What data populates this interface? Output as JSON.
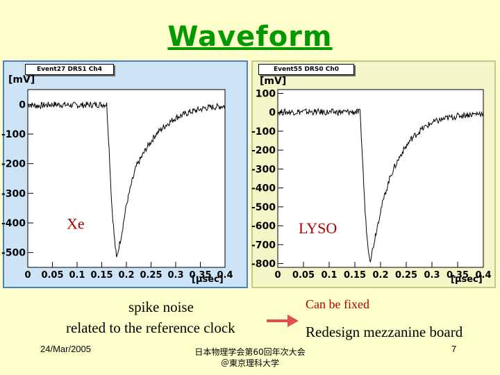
{
  "title": "Waveform",
  "chart_data": [
    {
      "type": "line",
      "event_label": "Event27 DRS1 Ch4",
      "ylabel": "[mV]",
      "xlabel": "[μsec]",
      "annotation": "Xe",
      "xlim": [
        0,
        0.4
      ],
      "ylim": [
        -550,
        50
      ],
      "yticks": [
        "0",
        "-100",
        "-200",
        "-300",
        "-400",
        "-500"
      ],
      "xticks": [
        "0",
        "0.05",
        "0.1",
        "0.15",
        "0.2",
        "0.25",
        "0.3",
        "0.35",
        "0.4"
      ],
      "x": [
        0,
        0.02,
        0.05,
        0.1,
        0.15,
        0.16,
        0.165,
        0.17,
        0.175,
        0.18,
        0.19,
        0.2,
        0.21,
        0.22,
        0.24,
        0.26,
        0.28,
        0.3,
        0.33,
        0.36,
        0.4
      ],
      "y": [
        0,
        -5,
        0,
        -3,
        0,
        0,
        -150,
        -330,
        -440,
        -520,
        -440,
        -340,
        -270,
        -210,
        -150,
        -100,
        -70,
        -45,
        -25,
        -12,
        -5
      ]
    },
    {
      "type": "line",
      "event_label": "Event55 DRS0 Ch0",
      "ylabel": "[mV]",
      "xlabel": "[μsec]",
      "annotation": "LYSO",
      "xlim": [
        0,
        0.4
      ],
      "ylim": [
        -820,
        120
      ],
      "yticks": [
        "100",
        "0",
        "-100",
        "-200",
        "-300",
        "-400",
        "-500",
        "-600",
        "-700",
        "-800"
      ],
      "xticks": [
        "0",
        "0.05",
        "0.1",
        "0.15",
        "0.2",
        "0.25",
        "0.3",
        "0.35",
        "0.4"
      ],
      "x": [
        0,
        0.05,
        0.1,
        0.15,
        0.16,
        0.165,
        0.17,
        0.175,
        0.18,
        0.185,
        0.19,
        0.2,
        0.21,
        0.22,
        0.24,
        0.26,
        0.28,
        0.3,
        0.33,
        0.36,
        0.4
      ],
      "y": [
        0,
        3,
        0,
        2,
        0,
        -250,
        -530,
        -700,
        -780,
        -720,
        -650,
        -520,
        -420,
        -330,
        -220,
        -140,
        -90,
        -55,
        -30,
        -15,
        -5
      ]
    }
  ],
  "notes": {
    "left_line1": "spike noise",
    "left_line2": "related to the reference clock",
    "fix": "Can be fixed",
    "redesign": "Redesign mezzanine board"
  },
  "footer": {
    "date": "24/Mar/2005",
    "conf1": "日本物理学会第60回年次大会",
    "conf2": "＠東京理科大学",
    "page": "7"
  },
  "colors": {
    "title": "#009900",
    "annotation": "#b00000",
    "arrow": "#e05050"
  }
}
